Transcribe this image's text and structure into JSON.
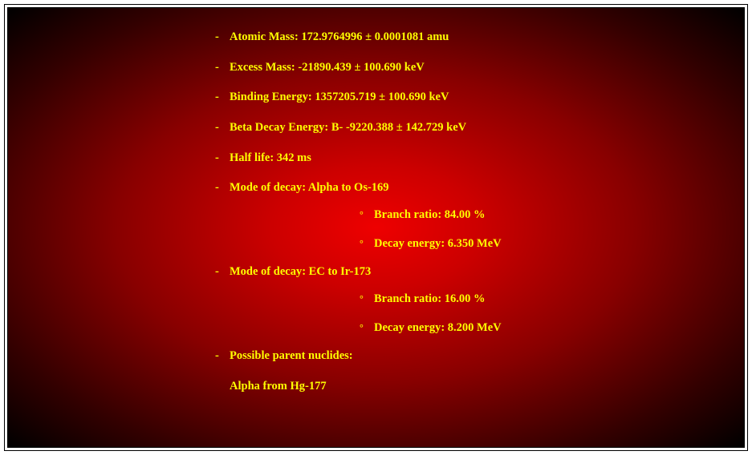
{
  "colors": {
    "text": "#ffff00",
    "bg_center": "#ee0000",
    "bg_mid": "#880000",
    "bg_edge": "#000000",
    "frame_border": "#000000",
    "page_bg": "#ffffff"
  },
  "typography": {
    "font_family": "Georgia, 'Times New Roman', serif",
    "font_size_pt": 11,
    "font_weight": "bold"
  },
  "bullets": {
    "primary": "-",
    "secondary": "°"
  },
  "properties": [
    {
      "text": "Atomic Mass: 172.9764996 ± 0.0001081 amu"
    },
    {
      "text": "Excess Mass: -21890.439 ± 100.690 keV"
    },
    {
      "text": "Binding Energy: 1357205.719 ± 100.690 keV"
    },
    {
      "text": "Beta Decay Energy: B- -9220.388 ± 142.729 keV"
    },
    {
      "text": "Half life: 342 ms"
    },
    {
      "text": "Mode of decay: Alpha to Os-169",
      "sub": [
        {
          "text": "Branch ratio: 84.00 %"
        },
        {
          "text": "Decay energy: 6.350 MeV"
        }
      ]
    },
    {
      "text": "Mode of decay: EC to Ir-173",
      "sub": [
        {
          "text": "Branch ratio: 16.00 %"
        },
        {
          "text": "Decay energy: 8.200 MeV"
        }
      ]
    },
    {
      "text": "Possible parent nuclides:",
      "plain_lines": [
        "Alpha from Hg-177"
      ]
    }
  ]
}
